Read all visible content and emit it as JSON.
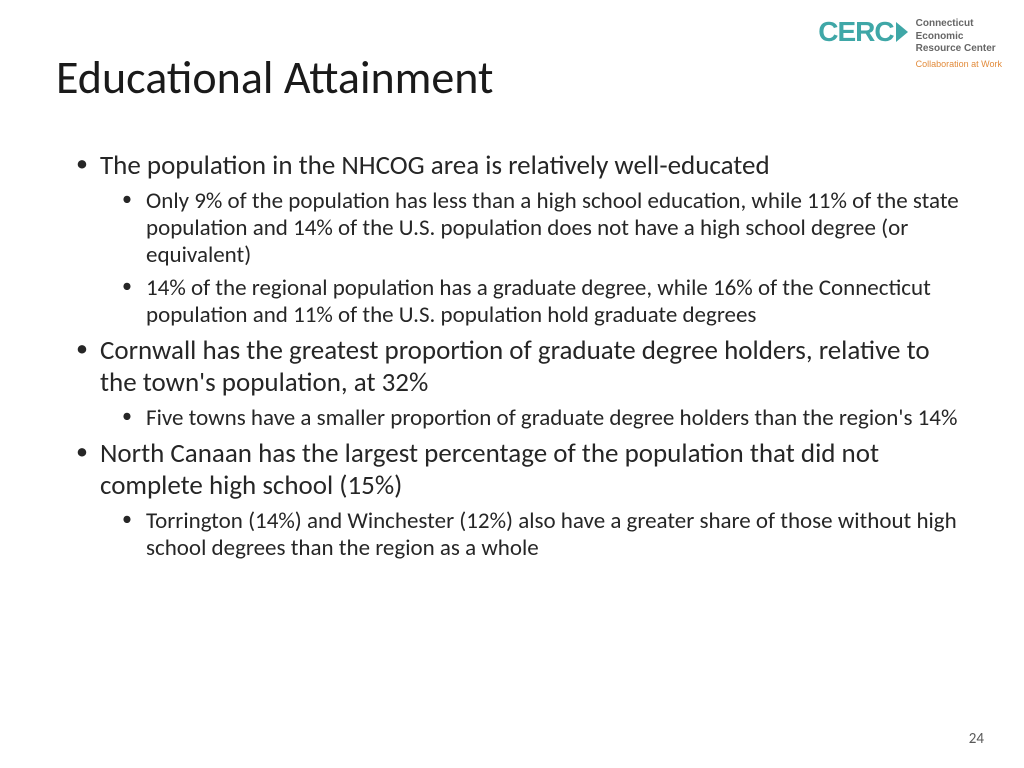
{
  "logo": {
    "brand": "CERC",
    "line1": "Connecticut",
    "line2": "Economic",
    "line3": "Resource Center",
    "tagline": "Collaboration at Work",
    "brand_color": "#3fa7a7",
    "tagline_color": "#e28b3b"
  },
  "title": "Educational Attainment",
  "bullets": [
    {
      "text": "The population in the NHCOG area is relatively well-educated",
      "children": [
        "Only 9% of the population has less than a high school education, while 11% of the state population and 14% of the U.S. population does not have a high school degree (or equivalent)",
        "14% of the regional population has a graduate degree, while 16% of the Connecticut population and 11% of the U.S. population hold graduate degrees"
      ]
    },
    {
      "text": "Cornwall has the greatest proportion of graduate degree holders, relative to the town's population, at 32%",
      "children": [
        "Five towns have a smaller proportion of graduate degree holders than the region's 14%"
      ]
    },
    {
      "text": "North Canaan has the largest percentage of the population that did not complete high school (15%)",
      "children": [
        "Torrington (14%) and Winchester (12%) also have a greater share of those without high school degrees than the region as a whole"
      ]
    }
  ],
  "page_number": "24",
  "style": {
    "title_fontsize": 46,
    "l1_fontsize": 27,
    "l2_fontsize": 23,
    "text_color": "#262626",
    "background_color": "#ffffff"
  }
}
